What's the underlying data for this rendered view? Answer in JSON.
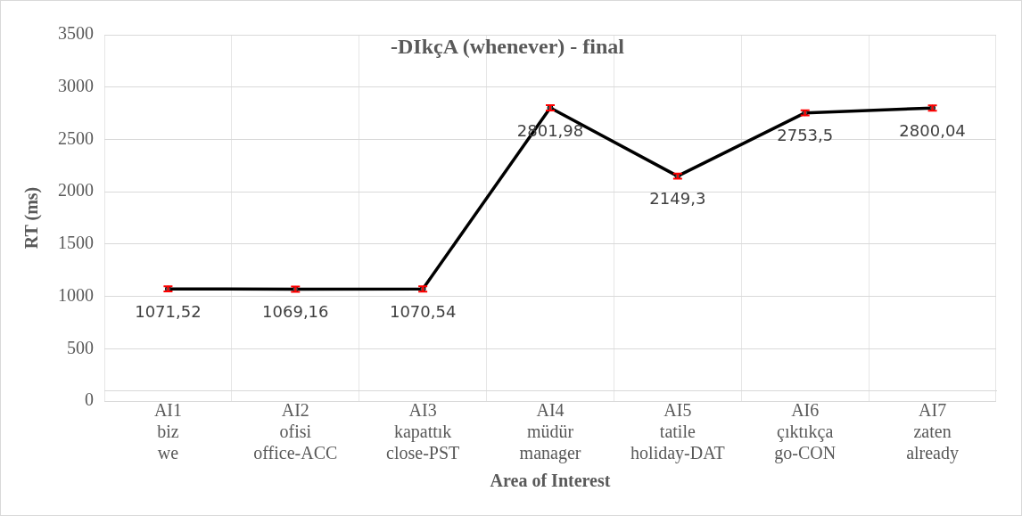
{
  "chart_data": {
    "type": "line",
    "title": "-DIkçA (whenever) - final",
    "xlabel": "Area of Interest",
    "ylabel": "RT (ms)",
    "categories": [
      "AI1\nbiz\nwe",
      "AI2\nofisi\noffice-ACC",
      "AI3\nkapattık\nclose-PST",
      "AI4\nmüdür\nmanager",
      "AI5\ntatile\nholiday-DAT",
      "AI6\nçıktıkça\ngo-CON",
      "AI7\nzaten\nalready"
    ],
    "values": [
      1071.52,
      1069.16,
      1070.54,
      2801.98,
      2149.3,
      2753.5,
      2800.04
    ],
    "value_labels": [
      "1071,52",
      "1069,16",
      "1070,54",
      "2801,98",
      "2149,3",
      "2753,5",
      "2800,04"
    ],
    "errors": [
      25,
      25,
      25,
      25,
      25,
      25,
      25
    ],
    "color": "#000000",
    "marker": "circle",
    "line_style": "solid",
    "ylim": [
      0,
      3500
    ],
    "yticks": [
      0,
      500,
      1000,
      1500,
      2000,
      2500,
      3000,
      3500
    ],
    "grid": true,
    "legend": false
  }
}
